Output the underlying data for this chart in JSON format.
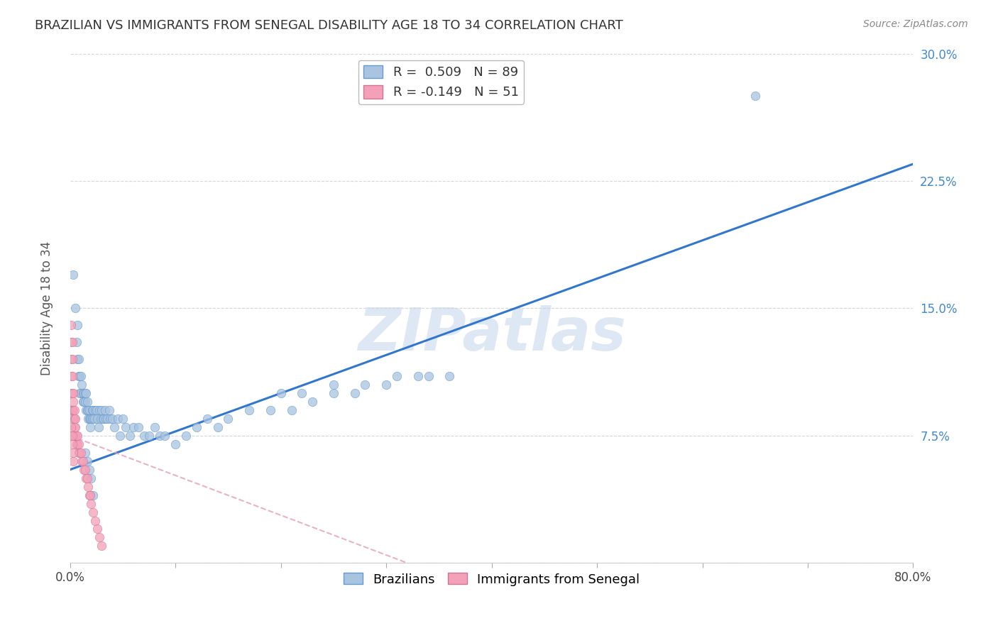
{
  "title": "BRAZILIAN VS IMMIGRANTS FROM SENEGAL DISABILITY AGE 18 TO 34 CORRELATION CHART",
  "source": "Source: ZipAtlas.com",
  "ylabel": "Disability Age 18 to 34",
  "xlim": [
    0.0,
    0.8
  ],
  "ylim": [
    0.0,
    0.3
  ],
  "R_brazilian": 0.509,
  "N_brazilian": 89,
  "R_senegal": -0.149,
  "N_senegal": 51,
  "blue_color": "#a8c4e0",
  "blue_edge": "#6699cc",
  "pink_color": "#f4a0b8",
  "pink_edge": "#cc7799",
  "line_blue": "#3377cc",
  "line_pink_dash": "#e0a0b8",
  "watermark_color": "#c8d8ed",
  "background_color": "#ffffff",
  "grid_color": "#cccccc",
  "title_color": "#333333",
  "right_tick_color": "#4488cc",
  "blue_line_x0": 0.0,
  "blue_line_y0": 0.055,
  "blue_line_x1": 0.8,
  "blue_line_y1": 0.235,
  "pink_line_x0": 0.0,
  "pink_line_y0": 0.075,
  "pink_line_x1": 0.32,
  "pink_line_y1": 0.0,
  "brazilian_x": [
    0.003,
    0.005,
    0.006,
    0.007,
    0.007,
    0.008,
    0.008,
    0.009,
    0.009,
    0.01,
    0.01,
    0.011,
    0.012,
    0.012,
    0.013,
    0.013,
    0.014,
    0.014,
    0.015,
    0.015,
    0.016,
    0.016,
    0.017,
    0.017,
    0.018,
    0.018,
    0.019,
    0.019,
    0.02,
    0.021,
    0.021,
    0.022,
    0.022,
    0.023,
    0.024,
    0.025,
    0.026,
    0.027,
    0.028,
    0.029,
    0.03,
    0.031,
    0.032,
    0.033,
    0.034,
    0.035,
    0.037,
    0.038,
    0.04,
    0.042,
    0.045,
    0.047,
    0.05,
    0.053,
    0.057,
    0.06,
    0.065,
    0.07,
    0.075,
    0.08,
    0.085,
    0.09,
    0.1,
    0.11,
    0.12,
    0.13,
    0.14,
    0.15,
    0.17,
    0.19,
    0.21,
    0.23,
    0.25,
    0.27,
    0.3,
    0.33,
    0.36,
    0.2,
    0.22,
    0.25,
    0.28,
    0.31,
    0.34,
    0.014,
    0.016,
    0.018,
    0.02,
    0.022,
    0.65
  ],
  "brazilian_y": [
    0.17,
    0.15,
    0.13,
    0.14,
    0.12,
    0.12,
    0.11,
    0.11,
    0.1,
    0.11,
    0.1,
    0.105,
    0.1,
    0.095,
    0.1,
    0.095,
    0.1,
    0.095,
    0.1,
    0.09,
    0.095,
    0.09,
    0.09,
    0.085,
    0.09,
    0.085,
    0.085,
    0.08,
    0.085,
    0.09,
    0.085,
    0.09,
    0.085,
    0.085,
    0.09,
    0.09,
    0.085,
    0.08,
    0.09,
    0.085,
    0.09,
    0.085,
    0.085,
    0.09,
    0.085,
    0.085,
    0.09,
    0.085,
    0.085,
    0.08,
    0.085,
    0.075,
    0.085,
    0.08,
    0.075,
    0.08,
    0.08,
    0.075,
    0.075,
    0.08,
    0.075,
    0.075,
    0.07,
    0.075,
    0.08,
    0.085,
    0.08,
    0.085,
    0.09,
    0.09,
    0.09,
    0.095,
    0.1,
    0.1,
    0.105,
    0.11,
    0.11,
    0.1,
    0.1,
    0.105,
    0.105,
    0.11,
    0.11,
    0.065,
    0.06,
    0.055,
    0.05,
    0.04,
    0.275
  ],
  "senegal_x": [
    0.001,
    0.001,
    0.001,
    0.001,
    0.001,
    0.001,
    0.002,
    0.002,
    0.002,
    0.002,
    0.002,
    0.003,
    0.003,
    0.003,
    0.003,
    0.004,
    0.004,
    0.004,
    0.004,
    0.005,
    0.005,
    0.005,
    0.006,
    0.006,
    0.007,
    0.007,
    0.008,
    0.008,
    0.009,
    0.01,
    0.011,
    0.012,
    0.013,
    0.014,
    0.015,
    0.016,
    0.017,
    0.018,
    0.019,
    0.02,
    0.022,
    0.024,
    0.026,
    0.028,
    0.03,
    0.001,
    0.001,
    0.002,
    0.002,
    0.003,
    0.003
  ],
  "senegal_y": [
    0.14,
    0.13,
    0.12,
    0.11,
    0.1,
    0.09,
    0.13,
    0.12,
    0.11,
    0.1,
    0.09,
    0.1,
    0.095,
    0.09,
    0.085,
    0.09,
    0.085,
    0.08,
    0.075,
    0.085,
    0.08,
    0.075,
    0.075,
    0.07,
    0.075,
    0.07,
    0.07,
    0.065,
    0.065,
    0.065,
    0.06,
    0.06,
    0.055,
    0.055,
    0.05,
    0.05,
    0.045,
    0.04,
    0.04,
    0.035,
    0.03,
    0.025,
    0.02,
    0.015,
    0.01,
    0.08,
    0.075,
    0.075,
    0.07,
    0.065,
    0.06
  ]
}
